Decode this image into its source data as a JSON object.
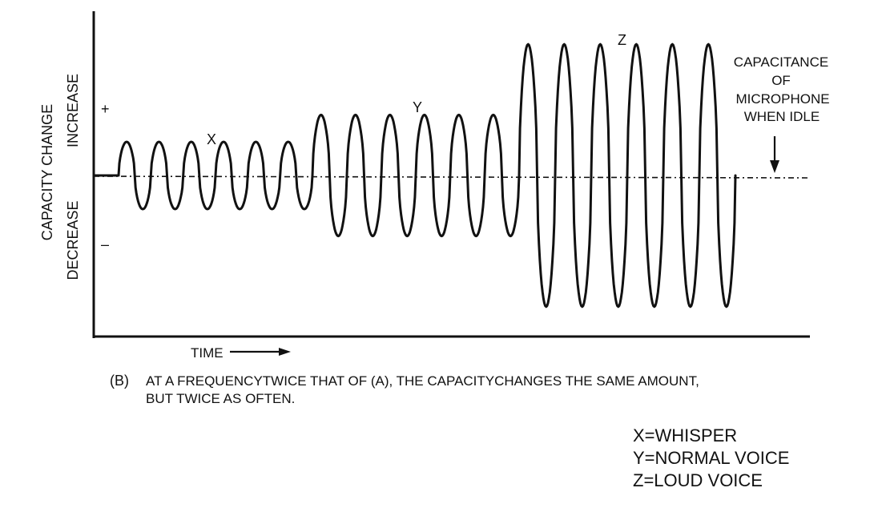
{
  "diagram": {
    "y_axis": {
      "title": "CAPACITY CHANGE",
      "increase_label": "INCREASE",
      "decrease_label": "DECREASE",
      "plus_sign": "+",
      "minus_sign": "–"
    },
    "time_label": "TIME",
    "wave_labels": {
      "x": "X",
      "y": "Y",
      "z": "Z"
    },
    "idle_annotation": [
      "CAPACITANCE",
      "OF",
      "MICROPHONE",
      "WHEN IDLE"
    ],
    "caption": {
      "marker": "(B)",
      "line1": "AT A  FREQUENCYTWICE  THAT OF (A), THE CAPACITYCHANGES THE  SAME AMOUNT,",
      "line2": "BUT TWICE AS OFTEN."
    },
    "legend": [
      "X=WHISPER",
      "Y=NORMAL VOICE",
      "Z=LOUD VOICE"
    ],
    "waveform": {
      "segments": [
        {
          "name": "X",
          "cycles": 6,
          "relative_amplitude": 1
        },
        {
          "name": "Y",
          "cycles": 6,
          "relative_amplitude": 1.8
        },
        {
          "name": "Z",
          "cycles": 6,
          "relative_amplitude": 3.9
        }
      ]
    }
  }
}
